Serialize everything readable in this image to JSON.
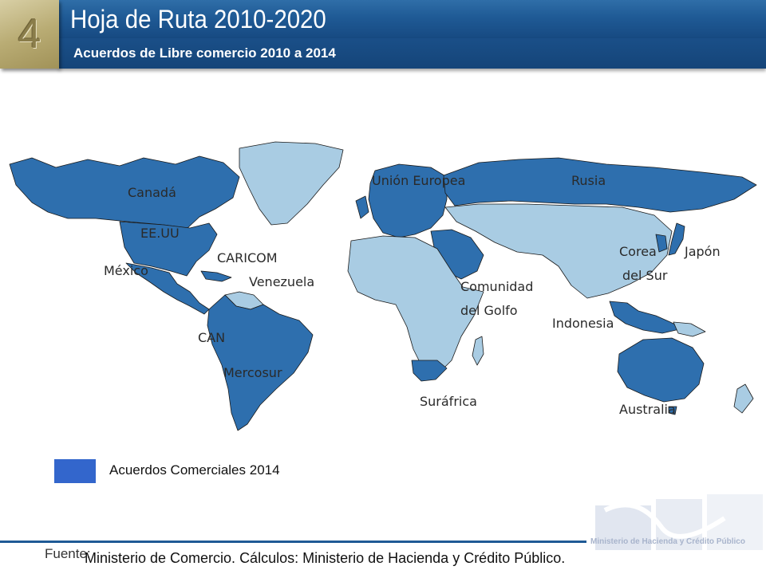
{
  "slide": {
    "number": "4",
    "title": "Hoja de Ruta 2010-2020",
    "subtitle": "Acuerdos de Libre comercio 2010 a 2014"
  },
  "map": {
    "colors": {
      "agreement": "#2e6fae",
      "other": "#a9cce3",
      "border": "#1a1a1a",
      "ocean": "#ffffff"
    },
    "labels": {
      "canada": "Canadá",
      "eeuu": "EE.UU",
      "mexico": "México",
      "caricom": "CARICOM",
      "venezuela": "Venezuela",
      "can": "CAN",
      "mercosur": "Mercosur",
      "union_europea": "Unión Europea",
      "rusia": "Rusia",
      "comunidad_golfo_1": "Comunidad",
      "comunidad_golfo_2": "del Golfo",
      "corea_1": "Corea",
      "corea_2": "del Sur",
      "japon": "Japón",
      "indonesia": "Indonesia",
      "surafrica": "Suráfrica",
      "australia": "Australia"
    }
  },
  "legend": {
    "label": "Acuerdos Comerciales 2014",
    "color": "#3366cc"
  },
  "footer": {
    "label": "Fuente:",
    "source": "Ministerio de Comercio. Cálculos: Ministerio de Hacienda y Crédito Público.",
    "logo_text": "Ministerio de Hacienda y Crédito Público"
  }
}
